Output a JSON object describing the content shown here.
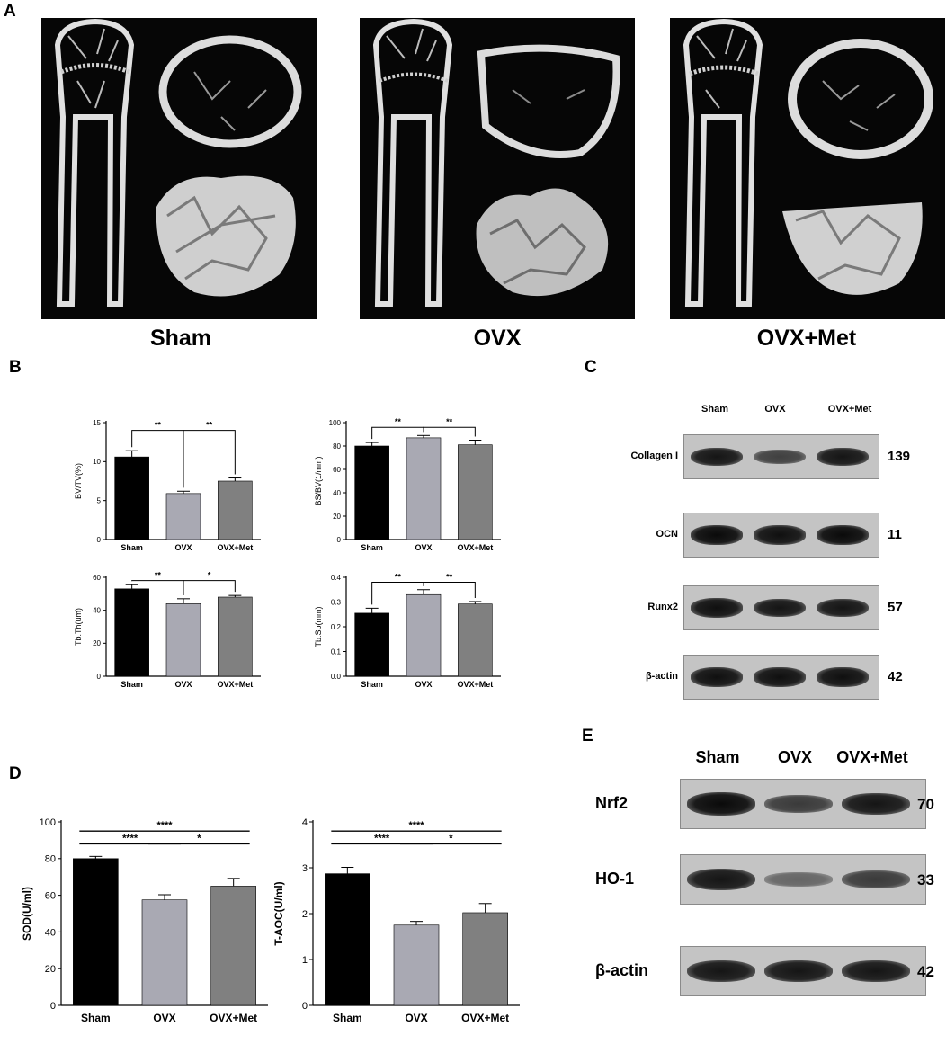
{
  "panel_letters": {
    "a": "A",
    "b": "B",
    "c": "C",
    "d": "D",
    "e": "E"
  },
  "panel_a": {
    "groups": [
      "Sham",
      "OVX",
      "OVX+Met"
    ]
  },
  "chart_data": [
    {
      "id": "bvtv",
      "type": "bar",
      "ylabel": "BV/TV(%)",
      "categories": [
        "Sham",
        "OVX",
        "OVX+Met"
      ],
      "values": [
        10.6,
        5.9,
        7.5
      ],
      "errors": [
        0.8,
        0.3,
        0.4
      ],
      "ylim": [
        0,
        15
      ],
      "yticks": [
        0,
        5,
        10,
        15
      ],
      "colors": [
        "#000000",
        "#a9a9b3",
        "#808080"
      ],
      "significance": [
        {
          "from": 0,
          "to": 1,
          "label": "**",
          "level": 14
        },
        {
          "from": 1,
          "to": 2,
          "label": "**",
          "level": 14
        }
      ]
    },
    {
      "id": "bsbv",
      "type": "bar",
      "ylabel": "BS/BV(1/mm)",
      "categories": [
        "Sham",
        "OVX",
        "OVX+Met"
      ],
      "values": [
        80,
        87,
        81
      ],
      "errors": [
        3,
        2,
        4
      ],
      "ylim": [
        0,
        100
      ],
      "yticks": [
        0,
        20,
        40,
        60,
        80,
        100
      ],
      "colors": [
        "#000000",
        "#a9a9b3",
        "#808080"
      ],
      "significance": [
        {
          "from": 0,
          "to": 1,
          "label": "**",
          "level": 96
        },
        {
          "from": 1,
          "to": 2,
          "label": "**",
          "level": 96
        }
      ]
    },
    {
      "id": "tbth",
      "type": "bar",
      "ylabel": "Tb.Th(um)",
      "categories": [
        "Sham",
        "OVX",
        "OVX+Met"
      ],
      "values": [
        53,
        44,
        48
      ],
      "errors": [
        2.5,
        3,
        1
      ],
      "ylim": [
        0,
        60
      ],
      "yticks": [
        0,
        20,
        40,
        60
      ],
      "colors": [
        "#000000",
        "#a9a9b3",
        "#808080"
      ],
      "significance": [
        {
          "from": 0,
          "to": 1,
          "label": "**",
          "level": 58
        },
        {
          "from": 1,
          "to": 2,
          "label": "*",
          "level": 58
        }
      ]
    },
    {
      "id": "tbsp",
      "type": "bar",
      "ylabel": "Tb.Sp(mm)",
      "categories": [
        "Sham",
        "OVX",
        "OVX+Met"
      ],
      "values": [
        0.255,
        0.33,
        0.292
      ],
      "errors": [
        0.02,
        0.02,
        0.01
      ],
      "ylim": [
        0,
        0.4
      ],
      "yticks": [
        "0.0",
        "0.1",
        "0.2",
        "0.3",
        "0.4"
      ],
      "colors": [
        "#000000",
        "#a9a9b3",
        "#808080"
      ],
      "significance": [
        {
          "from": 0,
          "to": 1,
          "label": "**",
          "level": 0.38
        },
        {
          "from": 1,
          "to": 2,
          "label": "**",
          "level": 0.38
        }
      ]
    },
    {
      "id": "sod",
      "type": "bar",
      "ylabel": "SOD(U/ml)",
      "categories": [
        "Sham",
        "OVX",
        "OVX+Met"
      ],
      "values": [
        80,
        57.5,
        65
      ],
      "errors": [
        1.2,
        2.8,
        4.2
      ],
      "ylim": [
        0,
        100
      ],
      "yticks": [
        0,
        20,
        40,
        60,
        80,
        100
      ],
      "colors": [
        "#000000",
        "#a9a9b3",
        "#808080"
      ],
      "significance": [
        {
          "from": 0,
          "to": 1,
          "label": "****",
          "level": 88,
          "style": "line"
        },
        {
          "from": 1,
          "to": 2,
          "label": "*",
          "level": 88,
          "style": "line"
        },
        {
          "from": 0,
          "to": 2,
          "label": "****",
          "level": 95,
          "style": "line"
        }
      ]
    },
    {
      "id": "taoc",
      "type": "bar",
      "ylabel": "T-AOC(U/ml)",
      "categories": [
        "Sham",
        "OVX",
        "OVX+Met"
      ],
      "values": [
        2.87,
        1.75,
        2.02
      ],
      "errors": [
        0.14,
        0.08,
        0.2
      ],
      "ylim": [
        0,
        4
      ],
      "yticks": [
        0,
        1,
        2,
        3,
        4
      ],
      "colors": [
        "#000000",
        "#a9a9b3",
        "#808080"
      ],
      "significance": [
        {
          "from": 0,
          "to": 1,
          "label": "****",
          "level": 3.52,
          "style": "line"
        },
        {
          "from": 1,
          "to": 2,
          "label": "*",
          "level": 3.52,
          "style": "line"
        },
        {
          "from": 0,
          "to": 2,
          "label": "****",
          "level": 3.8,
          "style": "line"
        }
      ]
    }
  ],
  "panel_c": {
    "lanes": [
      "Sham",
      "OVX",
      "OVX+Met"
    ],
    "rows": [
      {
        "label": "Collagen I",
        "mw": "139",
        "intensity": [
          0.9,
          0.55,
          0.9
        ]
      },
      {
        "label": "OCN",
        "mw": "11",
        "intensity": [
          1.0,
          0.95,
          1.0
        ]
      },
      {
        "label": "Runx2",
        "mw": "57",
        "intensity": [
          0.95,
          0.9,
          0.9
        ]
      },
      {
        "label": "β-actin",
        "mw": "42",
        "intensity": [
          0.95,
          0.95,
          0.95
        ]
      }
    ]
  },
  "panel_e": {
    "lanes": [
      "Sham",
      "OVX",
      "OVX+Met"
    ],
    "rows": [
      {
        "label": "Nrf2",
        "mw": "70",
        "intensity": [
          1.0,
          0.6,
          0.9
        ]
      },
      {
        "label": "HO-1",
        "mw": "33",
        "intensity": [
          0.9,
          0.25,
          0.6
        ]
      },
      {
        "label": "β-actin",
        "mw": "42",
        "intensity": [
          0.9,
          0.9,
          0.9
        ]
      }
    ]
  }
}
